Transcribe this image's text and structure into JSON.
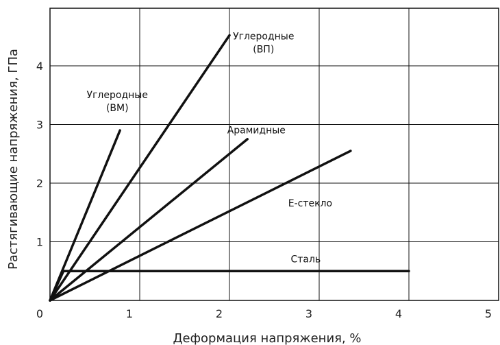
{
  "chart_data": {
    "type": "line",
    "xlabel": "Деформация напряжения, %",
    "ylabel": "Растягивающие напряжения, ГПа",
    "xlim": [
      0,
      5
    ],
    "ylim": [
      0,
      5
    ],
    "x_ticks": [
      "0",
      "1",
      "2",
      "3",
      "4",
      "5"
    ],
    "y_ticks": [
      "1",
      "2",
      "3",
      "4"
    ],
    "grid": true,
    "series": [
      {
        "label_lines": [
          "Углеродные",
          "(ВМ)"
        ],
        "points": [
          [
            0,
            0
          ],
          [
            0.78,
            2.9
          ]
        ]
      },
      {
        "label_lines": [
          "Углеродные",
          "(ВП)"
        ],
        "points": [
          [
            0,
            0
          ],
          [
            2.0,
            4.52
          ]
        ]
      },
      {
        "label_lines": [
          "Арамидные"
        ],
        "points": [
          [
            0,
            0
          ],
          [
            2.2,
            2.75
          ]
        ]
      },
      {
        "label_lines": [
          "Е-стекло"
        ],
        "points": [
          [
            0,
            0
          ],
          [
            3.35,
            2.55
          ]
        ]
      },
      {
        "label_lines": [
          "Сталь"
        ],
        "points": [
          [
            0,
            0
          ],
          [
            0.15,
            0.5
          ],
          [
            4.0,
            0.5
          ]
        ]
      }
    ]
  }
}
